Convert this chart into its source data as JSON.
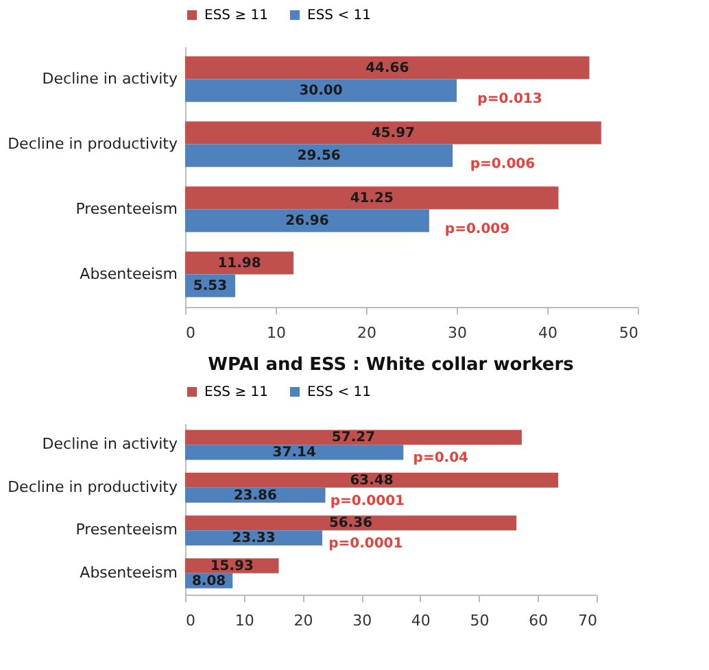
{
  "chart_data": [
    {
      "type": "bar",
      "orientation": "horizontal",
      "categories": [
        "Decline in activity",
        "Decline in productivity",
        "Presenteeism",
        "Absenteeism"
      ],
      "series": [
        {
          "name": "ESS ≥ 11",
          "color": "#c0504d",
          "values": [
            44.66,
            45.97,
            41.25,
            11.98
          ],
          "value_labels": [
            "44.66",
            "45.97",
            "41.25",
            "11.98"
          ]
        },
        {
          "name": "ESS < 11",
          "color": "#4f81bd",
          "values": [
            30.0,
            29.56,
            26.96,
            5.53
          ],
          "value_labels": [
            "30.00",
            "29.56",
            "26.96",
            "5.53"
          ]
        }
      ],
      "xlim": [
        0,
        50
      ],
      "xticks": [
        0,
        10,
        20,
        30,
        40,
        50
      ],
      "grid": false,
      "legend": "top",
      "annotations": [
        {
          "text": "p=0.013",
          "x": 32.3,
          "y": "Decline in activity"
        },
        {
          "text": "p=0.006",
          "x": 31.5,
          "y": "Decline in productivity"
        },
        {
          "text": "p=0.009",
          "x": 28.7,
          "y": "Presenteeism"
        }
      ]
    },
    {
      "type": "bar",
      "orientation": "horizontal",
      "title": "WPAI and ESS : White collar workers",
      "categories": [
        "Decline in activity",
        "Decline in productivity",
        "Presenteeism",
        "Absenteeism"
      ],
      "series": [
        {
          "name": "ESS ≥ 11",
          "color": "#c0504d",
          "values": [
            57.27,
            63.48,
            56.36,
            15.93
          ],
          "value_labels": [
            "57.27",
            "63.48",
            "56.36",
            "15.93"
          ]
        },
        {
          "name": "ESS < 11",
          "color": "#4f81bd",
          "values": [
            37.14,
            23.86,
            23.33,
            8.08
          ],
          "value_labels": [
            "37.14",
            "23.86",
            "23.33",
            "8.08"
          ]
        }
      ],
      "xlim": [
        0,
        70
      ],
      "xticks": [
        0,
        10,
        20,
        30,
        40,
        50,
        60,
        70
      ],
      "grid": false,
      "legend": "top",
      "annotations": [
        {
          "text": "p=0.04",
          "x": 38.8,
          "y": "Decline in activity"
        },
        {
          "text": "p=0.0001",
          "x": 24.7,
          "y": "Decline in productivity"
        },
        {
          "text": "p=0.0001",
          "x": 24.4,
          "y": "Presenteeism"
        }
      ]
    }
  ]
}
